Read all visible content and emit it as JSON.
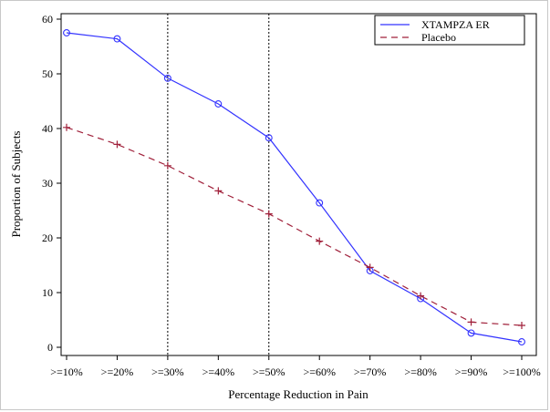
{
  "chart_data": {
    "type": "line",
    "xlabel": "Percentage Reduction in Pain",
    "ylabel": "Proportion of Subjects",
    "categories": [
      ">=10%",
      ">=20%",
      ">=30%",
      ">=40%",
      ">=50%",
      ">=60%",
      ">=70%",
      ">=80%",
      ">=90%",
      ">=100%"
    ],
    "ylim": [
      -1.5,
      61
    ],
    "yticks": [
      0,
      10,
      20,
      30,
      40,
      50,
      60
    ],
    "reference_lines_at": [
      ">=30%",
      ">=50%"
    ],
    "legend_position": "top-right",
    "grid": false,
    "series": [
      {
        "name": "XTAMPZA ER",
        "color": "#3333ff",
        "line_style": "solid",
        "marker": "circle",
        "values": [
          57.5,
          56.4,
          49.2,
          44.5,
          38.3,
          26.4,
          14.0,
          8.9,
          2.6,
          1.0
        ]
      },
      {
        "name": "Placebo",
        "color": "#a0203a",
        "line_style": "dashed",
        "marker": "plus",
        "values": [
          40.2,
          37.1,
          33.2,
          28.6,
          24.4,
          19.4,
          14.6,
          9.4,
          4.6,
          4.0
        ]
      }
    ]
  }
}
